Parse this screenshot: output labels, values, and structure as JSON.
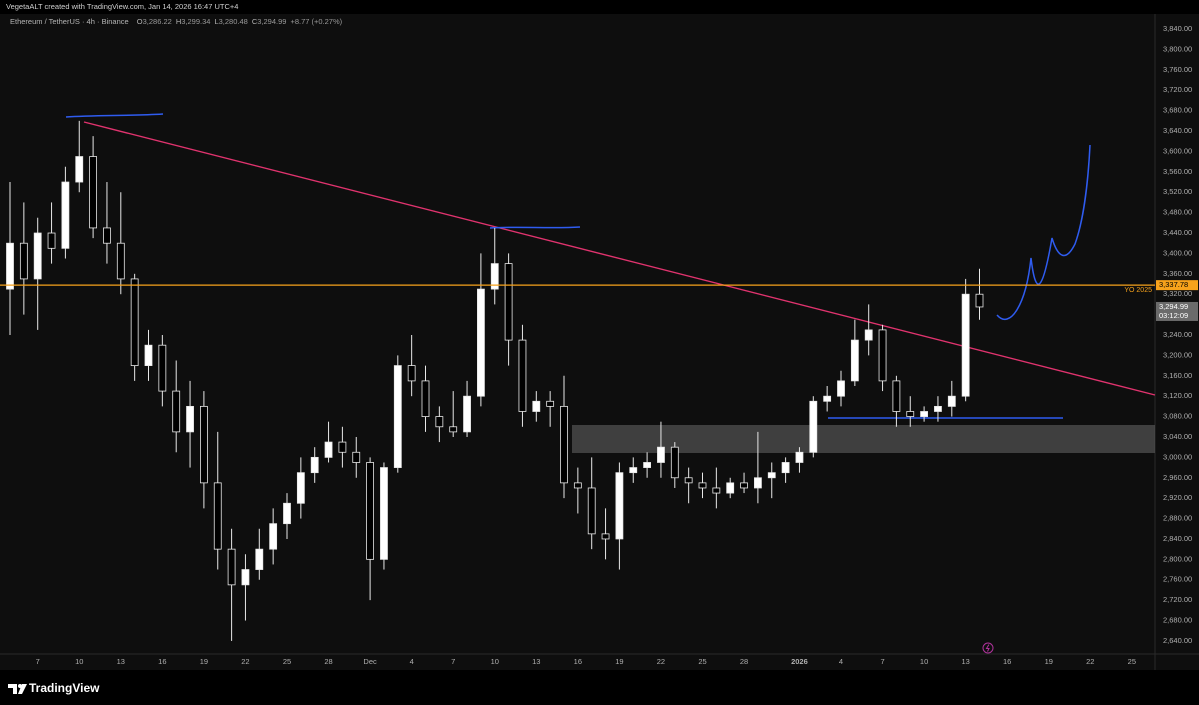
{
  "chart_data": {
    "type": "candlestick",
    "credit": "VegetaALT created with TradingView.com, Jan 14, 2026 16:47 UTC+4",
    "title": "Ethereum / TetherUS · 4h · Binance",
    "header_stats": [
      {
        "key": "O",
        "value": 3286.22,
        "label": "3,286.22"
      },
      {
        "key": "H",
        "value": 3299.34,
        "label": "3,299.34"
      },
      {
        "key": "L",
        "value": 3280.48,
        "label": "3,280.48"
      },
      {
        "key": "C",
        "value": 3294.99,
        "label": "3,294.99"
      }
    ],
    "change": "+8.77 (+0.27%)",
    "up_color": "#ffffff",
    "down_color": "#000000",
    "categories": [
      null,
      null,
      "7",
      null,
      null,
      "10",
      null,
      null,
      "13",
      null,
      null,
      "16",
      null,
      null,
      "19",
      null,
      null,
      "22",
      null,
      null,
      "25",
      null,
      null,
      "28",
      null,
      null,
      "Dec",
      null,
      null,
      "4",
      null,
      null,
      "7",
      null,
      null,
      "10",
      null,
      null,
      "13",
      null,
      null,
      "16",
      null,
      null,
      "19",
      null,
      null,
      "22",
      null,
      null,
      "25",
      null,
      null,
      "28",
      null,
      null,
      null,
      "2026",
      null,
      null,
      "4",
      null,
      null,
      "7",
      null,
      null,
      "10",
      null,
      null,
      "13",
      null,
      null,
      "16",
      null,
      null,
      "19",
      null,
      null,
      "22",
      null,
      null,
      "25",
      null,
      null
    ],
    "open": [
      3330,
      3420,
      3350,
      3440,
      3410,
      3540,
      3590,
      3450,
      3420,
      3350,
      3180,
      3220,
      3130,
      3050,
      3100,
      2950,
      2820,
      2750,
      2780,
      2820,
      2870,
      2910,
      2970,
      3000,
      3030,
      3010,
      2990,
      2800,
      2980,
      3180,
      3150,
      3080,
      3060,
      3050,
      3120,
      3330,
      3380,
      3230,
      3090,
      3110,
      3100,
      2950,
      2940,
      2850,
      2840,
      2970,
      2980,
      2990,
      3020,
      2960,
      2950,
      2940,
      2930,
      2950,
      2940,
      2960,
      2970,
      2990,
      3010,
      3110,
      3120,
      3150,
      3230,
      3250,
      3150,
      3090,
      3080,
      3090,
      3100,
      3120,
      3320,
      null,
      null,
      null,
      null,
      null,
      null,
      null,
      null,
      null,
      null,
      null,
      null,
      null
    ],
    "high": [
      3540,
      3500,
      3470,
      3500,
      3570,
      3660,
      3630,
      3540,
      3520,
      3360,
      3250,
      3240,
      3190,
      3150,
      3130,
      3050,
      2860,
      2810,
      2860,
      2900,
      2930,
      3000,
      3020,
      3070,
      3060,
      3040,
      3000,
      2990,
      3200,
      3240,
      3180,
      3100,
      3130,
      3150,
      3400,
      3450,
      3400,
      3260,
      3130,
      3130,
      3160,
      2980,
      3000,
      2900,
      2990,
      3000,
      3010,
      3070,
      3030,
      2980,
      2970,
      2980,
      2960,
      2970,
      3050,
      2990,
      3000,
      3020,
      3120,
      3140,
      3170,
      3270,
      3300,
      3260,
      3160,
      3120,
      3100,
      3120,
      3150,
      3350,
      3370,
      null,
      null,
      null,
      null,
      null,
      null,
      null,
      null,
      null,
      null,
      null,
      null,
      null
    ],
    "low": [
      3240,
      3280,
      3250,
      3380,
      3390,
      3520,
      3430,
      3380,
      3320,
      3150,
      3150,
      3100,
      3010,
      2980,
      2900,
      2780,
      2640,
      2680,
      2760,
      2790,
      2840,
      2880,
      2950,
      2990,
      2980,
      2960,
      2720,
      2780,
      2970,
      3120,
      3050,
      3030,
      3040,
      3040,
      3100,
      3300,
      3180,
      3060,
      3070,
      3060,
      2920,
      2890,
      2820,
      2800,
      2780,
      2950,
      2960,
      2960,
      2940,
      2910,
      2920,
      2900,
      2920,
      2930,
      2910,
      2920,
      2950,
      2970,
      3000,
      3090,
      3100,
      3140,
      3200,
      3130,
      3060,
      3060,
      3070,
      3070,
      3080,
      3110,
      3270,
      null,
      null,
      null,
      null,
      null,
      null,
      null,
      null,
      null,
      null,
      null,
      null,
      null
    ],
    "close": [
      3420,
      3350,
      3440,
      3410,
      3540,
      3590,
      3450,
      3420,
      3350,
      3180,
      3220,
      3130,
      3050,
      3100,
      2950,
      2820,
      2750,
      2780,
      2820,
      2870,
      2910,
      2970,
      3000,
      3030,
      3010,
      2990,
      2800,
      2980,
      3180,
      3150,
      3080,
      3060,
      3050,
      3120,
      3330,
      3380,
      3230,
      3090,
      3110,
      3100,
      2950,
      2940,
      2850,
      2840,
      2970,
      2980,
      2990,
      3020,
      2960,
      2950,
      2940,
      2930,
      2950,
      2940,
      2960,
      2970,
      2990,
      3010,
      3110,
      3120,
      3150,
      3230,
      3250,
      3150,
      3090,
      3080,
      3090,
      3100,
      3120,
      3320,
      3295,
      null,
      null,
      null,
      null,
      null,
      null,
      null,
      null,
      null,
      null,
      null,
      null,
      null
    ],
    "ylim": [
      2583,
      3897
    ],
    "yticks": [
      {
        "value": 2640,
        "label": "2,640.00"
      },
      {
        "value": 2680,
        "label": "2,680.00"
      },
      {
        "value": 2720,
        "label": "2,720.00"
      },
      {
        "value": 2760,
        "label": "2,760.00"
      },
      {
        "value": 2800,
        "label": "2,800.00"
      },
      {
        "value": 2840,
        "label": "2,840.00"
      },
      {
        "value": 2880,
        "label": "2,880.00"
      },
      {
        "value": 2920,
        "label": "2,920.00"
      },
      {
        "value": 2960,
        "label": "2,960.00"
      },
      {
        "value": 3000,
        "label": "3,000.00"
      },
      {
        "value": 3040,
        "label": "3,040.00"
      },
      {
        "value": 3080,
        "label": "3,080.00"
      },
      {
        "value": 3120,
        "label": "3,120.00"
      },
      {
        "value": 3160,
        "label": "3,160.00"
      },
      {
        "value": 3200,
        "label": "3,200.00"
      },
      {
        "value": 3240,
        "label": "3,240.00"
      },
      {
        "value": 3280,
        "label": "3,280.00"
      },
      {
        "value": 3320,
        "label": "3,320.00"
      },
      {
        "value": 3360,
        "label": "3,360.00"
      },
      {
        "value": 3400,
        "label": "3,400.00"
      },
      {
        "value": 3440,
        "label": "3,440.00"
      },
      {
        "value": 3480,
        "label": "3,480.00"
      },
      {
        "value": 3520,
        "label": "3,520.00"
      },
      {
        "value": 3560,
        "label": "3,560.00"
      },
      {
        "value": 3600,
        "label": "3,600.00"
      },
      {
        "value": 3640,
        "label": "3,640.00"
      },
      {
        "value": 3680,
        "label": "3,680.00"
      },
      {
        "value": 3720,
        "label": "3,720.00"
      },
      {
        "value": 3760,
        "label": "3,760.00"
      },
      {
        "value": 3800,
        "label": "3,800.00"
      },
      {
        "value": 3840,
        "label": "3,840.00"
      }
    ],
    "grid": false,
    "price_line": {
      "name": "YO 2025",
      "value": 3337.78,
      "label": "3,337.78",
      "color": "#f7a21b"
    },
    "last_price": {
      "value": 3294.99,
      "label": "3,294.99",
      "countdown": "03:12:09"
    },
    "footer": "TradingView"
  }
}
